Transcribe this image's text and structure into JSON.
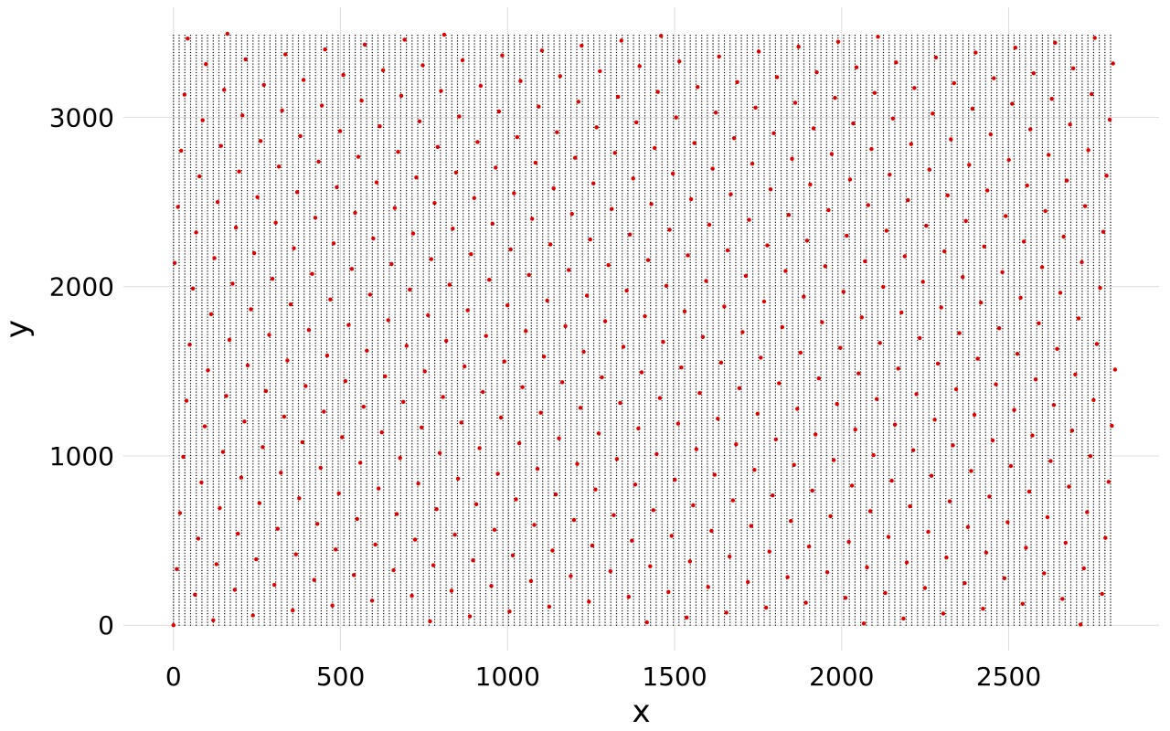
{
  "chart_data": {
    "type": "scatter",
    "title": "",
    "xlabel": "x",
    "ylabel": "y",
    "xlim": [
      -150,
      2950
    ],
    "ylim": [
      -150,
      3650
    ],
    "xticks": [
      0,
      500,
      1000,
      1500,
      2000,
      2500
    ],
    "yticks": [
      0,
      1000,
      2000,
      3000
    ],
    "grid": true,
    "legend": "none",
    "background_points": {
      "color": "#000000",
      "description_of_pattern": "dense square lattice of integer-spaced points covering the rectangle",
      "x_range": [
        0,
        2820
      ],
      "y_range": [
        0,
        3500
      ],
      "step": 17
    },
    "highlight_points": {
      "color": "#e00000",
      "lattice_origin": [
        0,
        0
      ],
      "basis_a": [
        118.9,
        29.0
      ],
      "basis_b": [
        -54.6,
        151.2
      ],
      "x_range": [
        0,
        2820
      ],
      "y_range": [
        0,
        3500
      ]
    },
    "colors": {
      "grid": "#dddddd",
      "point": "#000000",
      "highlight": "#e00000"
    }
  }
}
